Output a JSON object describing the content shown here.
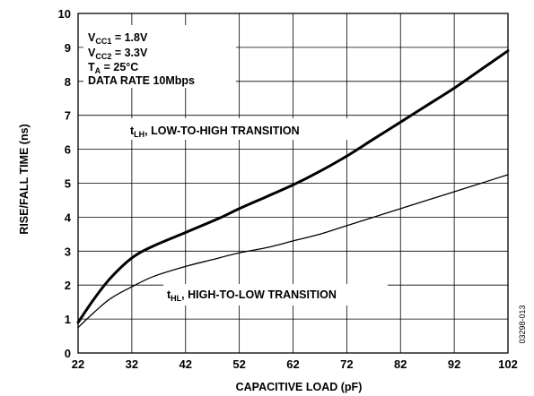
{
  "chart_data": {
    "type": "line",
    "xlabel": "CAPACITIVE LOAD (pF)",
    "ylabel": "RISE/FALL TIME (ns)",
    "xlim": [
      22,
      102
    ],
    "ylim": [
      0,
      10
    ],
    "xticks": [
      22,
      32,
      42,
      52,
      62,
      72,
      82,
      92,
      102
    ],
    "yticks": [
      0,
      1,
      2,
      3,
      4,
      5,
      6,
      7,
      8,
      9,
      10
    ],
    "grid": true,
    "conditions": {
      "vcc1": {
        "sym": "V",
        "sub": "CC1",
        "rest": " = 1.8V"
      },
      "vcc2": {
        "sym": "V",
        "sub": "CC2",
        "rest": " = 3.3V"
      },
      "ta": {
        "sym": "T",
        "sub": "A",
        "rest": " = 25°C"
      },
      "rate": "DATA RATE 10Mbps"
    },
    "series": [
      {
        "name": "LOW-TO-HIGH TRANSITION",
        "label": {
          "sym": "t",
          "sub": "LH",
          "rest": ", LOW-TO-HIGH TRANSITION"
        },
        "stroke": "#000000",
        "width": 3,
        "x": [
          22,
          25,
          28,
          32,
          36,
          42,
          48,
          52,
          57,
          62,
          67,
          72,
          77,
          82,
          87,
          92,
          97,
          102
        ],
        "y": [
          0.9,
          1.6,
          2.2,
          2.8,
          3.15,
          3.55,
          3.95,
          4.25,
          4.6,
          4.95,
          5.35,
          5.8,
          6.3,
          6.8,
          7.3,
          7.8,
          8.35,
          8.9
        ]
      },
      {
        "name": "HIGH-TO-LOW TRANSITION",
        "label": {
          "sym": "t",
          "sub": "HL",
          "rest": ", HIGH-TO-LOW TRANSITION"
        },
        "stroke": "#000000",
        "width": 1.3,
        "x": [
          22,
          25,
          28,
          32,
          36,
          42,
          47,
          52,
          57,
          62,
          67,
          72,
          77,
          82,
          87,
          92,
          97,
          102
        ],
        "y": [
          0.75,
          1.2,
          1.6,
          1.95,
          2.25,
          2.55,
          2.75,
          2.95,
          3.1,
          3.3,
          3.5,
          3.75,
          4.0,
          4.25,
          4.5,
          4.75,
          5.0,
          5.25
        ]
      }
    ],
    "figure_code": "03298-013"
  }
}
